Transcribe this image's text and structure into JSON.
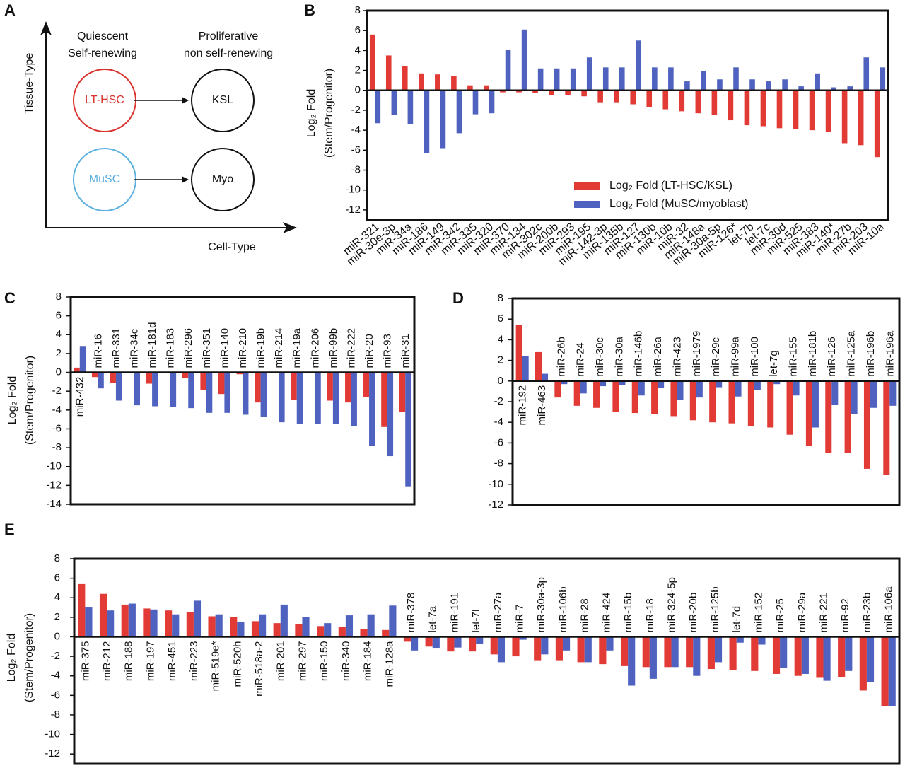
{
  "diagram": {
    "panel_label": "A",
    "y_axis": "Tissue-Type",
    "x_axis": "Cell-Type",
    "columns": [
      [
        "Quiescent",
        "Self-renewing"
      ],
      [
        "Proliferative",
        "non self-renewing"
      ]
    ],
    "nodes": [
      "LT-HSC",
      "KSL",
      "MuSC",
      "Myo"
    ]
  },
  "chart_data": [
    {
      "panel_label": "B",
      "type": "bar",
      "y_label": [
        "Log₂ Fold",
        "(Stem/Progenitor)"
      ],
      "categories": [
        "miR-321",
        "miR-30e-3p",
        "miR-34a",
        "miR-186",
        "miR-149",
        "miR-342",
        "miR-335",
        "miR-320",
        "miR-370",
        "miR-134",
        "miR-302c",
        "miR-200b",
        "miR-293",
        "miR-195",
        "miR-142-3p",
        "miR-135b",
        "miR-127",
        "miR-130b",
        "miR-10b",
        "miR-32",
        "miR-148a",
        "miR-30a-5p",
        "miR-126*",
        "let-7b",
        "let-7c",
        "miR-30d",
        "miR-525",
        "miR-383",
        "miR-140*",
        "miR-27b",
        "miR-203",
        "miR-10a"
      ],
      "series": [
        {
          "name": "Log₂ Fold (LT-HSC/KSL)",
          "color": "#e23b36",
          "values": [
            5.6,
            3.5,
            2.4,
            1.7,
            1.6,
            1.4,
            0.5,
            0.5,
            -0.2,
            -0.2,
            -0.3,
            -0.5,
            -0.5,
            -0.6,
            -1.2,
            -1.2,
            -1.4,
            -1.7,
            -1.9,
            -2.1,
            -2.3,
            -2.5,
            -3.0,
            -3.5,
            -3.6,
            -3.8,
            -3.9,
            -4.0,
            -4.2,
            -5.3,
            -5.5,
            -6.7
          ]
        },
        {
          "name": "Log₂ Fold (MuSC/myoblast)",
          "color": "#4f62c0",
          "values": [
            -3.3,
            -2.5,
            -3.4,
            -6.3,
            -5.8,
            -4.3,
            -2.4,
            -2.3,
            4.1,
            6.1,
            2.2,
            2.2,
            2.2,
            3.3,
            2.3,
            2.3,
            5.0,
            2.3,
            2.3,
            0.9,
            1.9,
            1.1,
            2.3,
            1.1,
            0.9,
            1.1,
            0.4,
            1.7,
            0.3,
            0.4,
            3.3,
            2.3
          ]
        }
      ],
      "ylim": [
        -13,
        8
      ],
      "yticks": [
        8,
        6,
        4,
        2,
        0,
        -2,
        -4,
        -6,
        -8,
        -10,
        -12
      ],
      "legend": "lower right"
    },
    {
      "panel_label": "C",
      "type": "bar",
      "y_label": [
        "Log₂ Fold",
        "(Stem/Progenitor)"
      ],
      "categories": [
        "miR-432",
        "miR-16",
        "miR-331",
        "miR-34c",
        "miR-181d",
        "miR-183",
        "miR-296",
        "miR-351",
        "miR-140",
        "miR-210",
        "miR-19b",
        "miR-214",
        "miR-19a",
        "miR-206",
        "miR-99b",
        "miR-222",
        "miR-20",
        "miR-93",
        "miR-31"
      ],
      "series": [
        {
          "color": "#e23b36",
          "values": [
            0.5,
            -0.5,
            -1.1,
            -0.1,
            -1.2,
            -0.1,
            -0.6,
            -1.9,
            -2.3,
            -0.2,
            -3.2,
            -0.1,
            -2.9,
            -0.1,
            -3.0,
            -3.2,
            -2.6,
            -5.8,
            -4.2
          ]
        },
        {
          "color": "#4f62c0",
          "values": [
            2.8,
            -1.7,
            -3.0,
            -3.5,
            -3.6,
            -3.7,
            -3.8,
            -4.3,
            -4.3,
            -4.5,
            -4.7,
            -5.3,
            -5.5,
            -5.5,
            -5.5,
            -5.7,
            -7.8,
            -8.9,
            -12.1
          ]
        }
      ],
      "ylim": [
        -14,
        8
      ],
      "yticks": [
        8,
        6,
        4,
        2,
        0,
        -2,
        -4,
        -6,
        -8,
        -10,
        -12,
        -14
      ]
    },
    {
      "panel_label": "D",
      "type": "bar",
      "categories": [
        "miR-192",
        "miR-463",
        "miR-26b",
        "miR-24",
        "miR-30c",
        "miR-30a",
        "miR-146b",
        "miR-26a",
        "miR-423",
        "miR-1979",
        "miR-29c",
        "miR-99a",
        "miR-100",
        "let-7g",
        "miR-155",
        "miR-181b",
        "miR-126",
        "miR-125a",
        "miR-196b",
        "miR-196a"
      ],
      "series": [
        {
          "color": "#e23b36",
          "values": [
            5.4,
            2.8,
            -1.6,
            -2.4,
            -2.6,
            -3.0,
            -3.1,
            -3.2,
            -3.4,
            -3.8,
            -4.0,
            -4.1,
            -4.4,
            -4.5,
            -5.2,
            -6.3,
            -7.0,
            -7.0,
            -8.5,
            -9.1
          ]
        },
        {
          "color": "#4f62c0",
          "values": [
            2.4,
            0.7,
            -0.3,
            -1.2,
            -0.5,
            -0.4,
            -1.4,
            -0.7,
            -1.8,
            -1.6,
            -0.6,
            -1.5,
            -0.9,
            -0.3,
            -1.4,
            -4.5,
            -2.3,
            -3.2,
            -2.6,
            -2.4
          ]
        }
      ],
      "ylim": [
        -12,
        8
      ],
      "yticks": [
        8,
        6,
        4,
        2,
        0,
        -2,
        -4,
        -6,
        -8,
        -10,
        -12
      ]
    },
    {
      "panel_label": "E",
      "type": "bar",
      "y_label": [
        "Log₂ Fold",
        "(Stem/Progenitor)"
      ],
      "categories": [
        "miR-375",
        "miR-212",
        "miR-188",
        "miR-197",
        "miR-451",
        "miR-223",
        "miR-519e*",
        "miR-520h",
        "miR-518a-2",
        "miR-201",
        "miR-297",
        "miR-150",
        "miR-340",
        "miR-184",
        "miR-128a",
        "miR-378",
        "let-7a",
        "miR-191",
        "let-7f",
        "miR-27a",
        "miR-7",
        "miR-30a-3p",
        "miR-106b",
        "miR-28",
        "miR-424",
        "miR-15b",
        "miR-18",
        "miR-324-5p",
        "miR-20b",
        "miR-125b",
        "let-7d",
        "miR-152",
        "miR-25",
        "miR-29a",
        "miR-221",
        "miR-92",
        "miR-23b",
        "miR-106a"
      ],
      "series": [
        {
          "color": "#e23b36",
          "values": [
            5.4,
            4.4,
            3.3,
            2.9,
            2.7,
            2.5,
            2.1,
            2.0,
            1.6,
            1.4,
            1.3,
            1.1,
            1.0,
            0.8,
            0.7,
            -0.5,
            -1.0,
            -1.5,
            -1.5,
            -1.8,
            -2.0,
            -2.4,
            -2.4,
            -2.6,
            -2.8,
            -3.0,
            -3.1,
            -3.1,
            -3.1,
            -3.3,
            -3.4,
            -3.5,
            -3.8,
            -4.0,
            -4.2,
            -4.1,
            -5.5,
            -7.1
          ]
        },
        {
          "color": "#4f62c0",
          "values": [
            3.0,
            2.7,
            3.4,
            2.8,
            2.3,
            3.7,
            2.3,
            1.5,
            2.3,
            3.3,
            2.0,
            1.4,
            2.2,
            2.3,
            3.2,
            -1.4,
            -1.2,
            -1.1,
            -0.7,
            -2.6,
            -0.3,
            -1.8,
            -1.4,
            -2.6,
            -1.4,
            -5.0,
            -4.3,
            -3.1,
            -4.0,
            -2.6,
            -0.6,
            -0.8,
            -3.2,
            -3.8,
            -4.5,
            -3.5,
            -4.6,
            -7.1
          ]
        }
      ],
      "ylim": [
        -13,
        8
      ],
      "yticks": [
        8,
        6,
        4,
        2,
        0,
        -2,
        -4,
        -6,
        -8,
        -10,
        -12
      ]
    }
  ]
}
